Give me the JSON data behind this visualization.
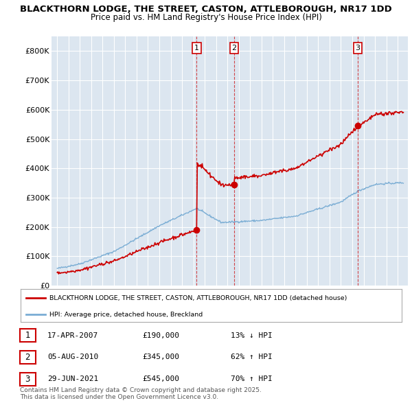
{
  "title_line1": "BLACKTHORN LODGE, THE STREET, CASTON, ATTLEBOROUGH, NR17 1DD",
  "title_line2": "Price paid vs. HM Land Registry's House Price Index (HPI)",
  "ylim": [
    0,
    850000
  ],
  "yticks": [
    0,
    100000,
    200000,
    300000,
    400000,
    500000,
    600000,
    700000,
    800000
  ],
  "ytick_labels": [
    "£0",
    "£100K",
    "£200K",
    "£300K",
    "£400K",
    "£500K",
    "£600K",
    "£700K",
    "£800K"
  ],
  "sale_color": "#cc0000",
  "hpi_color": "#7aadd4",
  "vline_color": "#cc0000",
  "background_color": "#ffffff",
  "plot_bg_color": "#dce6f0",
  "grid_color": "#ffffff",
  "sale_dates_year": [
    2007.29,
    2010.59,
    2021.49
  ],
  "sale_prices": [
    190000,
    345000,
    545000
  ],
  "legend_sale_label": "BLACKTHORN LODGE, THE STREET, CASTON, ATTLEBOROUGH, NR17 1DD (detached house)",
  "legend_hpi_label": "HPI: Average price, detached house, Breckland",
  "transaction_labels": [
    "1",
    "2",
    "3"
  ],
  "transaction_dates": [
    "17-APR-2007",
    "05-AUG-2010",
    "29-JUN-2021"
  ],
  "transaction_prices": [
    "£190,000",
    "£345,000",
    "£545,000"
  ],
  "transaction_hpi": [
    "13% ↓ HPI",
    "62% ↑ HPI",
    "70% ↑ HPI"
  ],
  "footnote": "Contains HM Land Registry data © Crown copyright and database right 2025.\nThis data is licensed under the Open Government Licence v3.0."
}
